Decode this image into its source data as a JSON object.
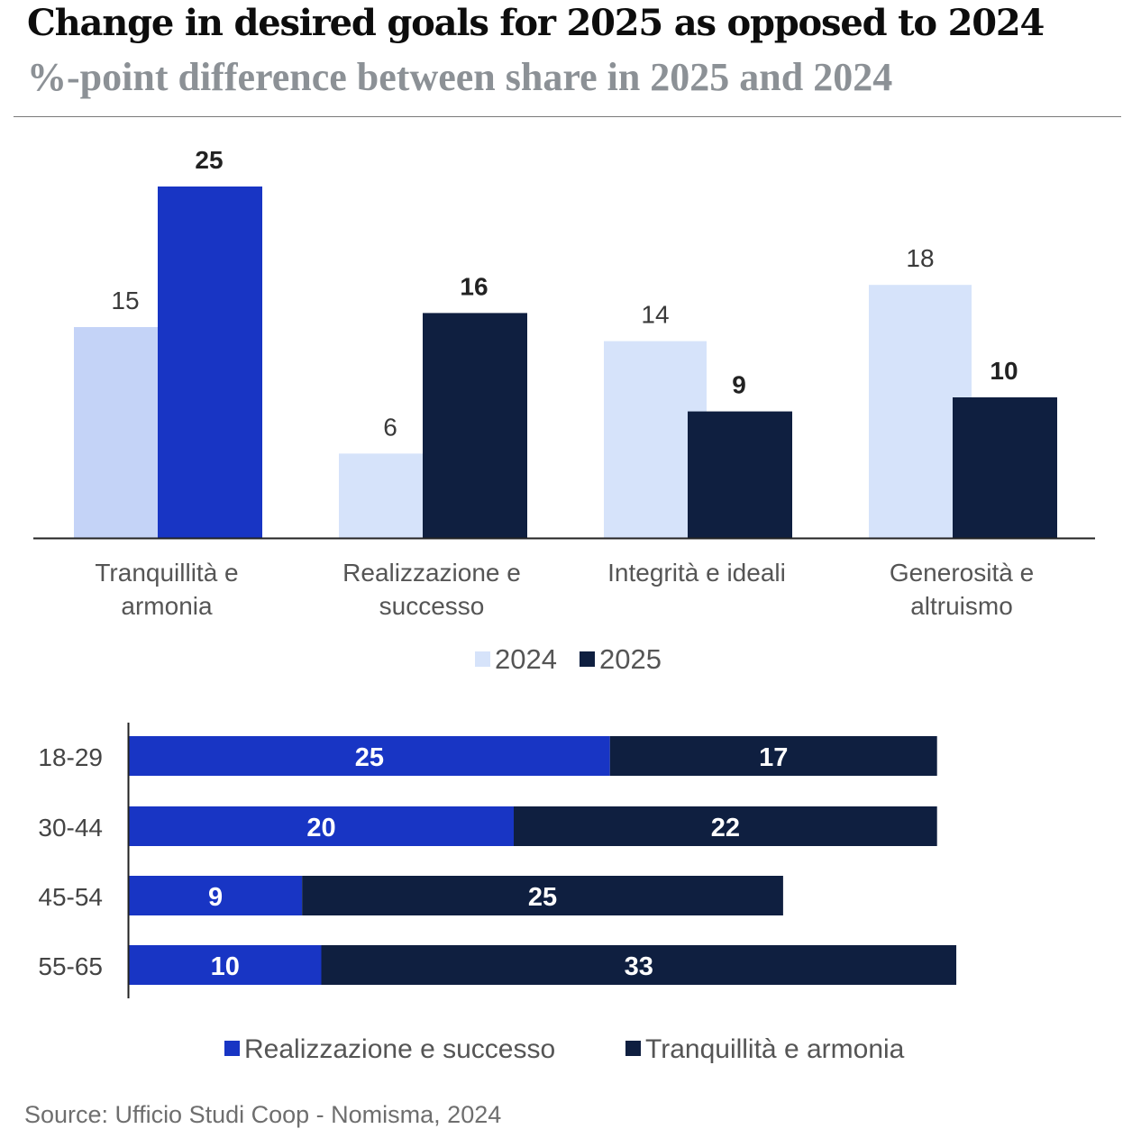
{
  "header": {
    "title": "Change in desired goals for 2025 as opposed to 2024",
    "subtitle": "%-point difference between share in 2025 and 2024"
  },
  "source": "Source: Ufficio Studi Coop - Nomisma, 2024",
  "colors": {
    "series_2024_first": "#c4d3f7",
    "series_2024": "#d6e3fa",
    "series_2025_first": "#1835c4",
    "series_2025": "#0f1f40",
    "realizzazione": "#1835c4",
    "tranquillita": "#0f1f40"
  },
  "chart_data": [
    {
      "type": "bar",
      "categories": [
        [
          "Tranquillità e",
          "armonia"
        ],
        [
          "Realizzazione e",
          "successo"
        ],
        [
          "Integrità e ideali"
        ],
        [
          "Generosità e",
          "altruismo"
        ]
      ],
      "series": [
        {
          "name": "2024",
          "values": [
            15,
            6,
            14,
            18
          ]
        },
        {
          "name": "2025",
          "values": [
            25,
            16,
            9,
            10
          ]
        }
      ],
      "ylim": [
        0,
        25
      ],
      "legend": "bottom-center",
      "grid": false
    },
    {
      "type": "bar",
      "orientation": "horizontal",
      "stacked": true,
      "categories": [
        "18-29",
        "30-44",
        "45-54",
        "55-65"
      ],
      "series": [
        {
          "name": "Realizzazione e successo",
          "values": [
            25,
            20,
            9,
            10
          ]
        },
        {
          "name": "Tranquillità e armonia",
          "values": [
            17,
            22,
            25,
            33
          ]
        }
      ],
      "xlim": [
        0,
        43
      ],
      "legend": "bottom-center",
      "grid": false
    }
  ]
}
